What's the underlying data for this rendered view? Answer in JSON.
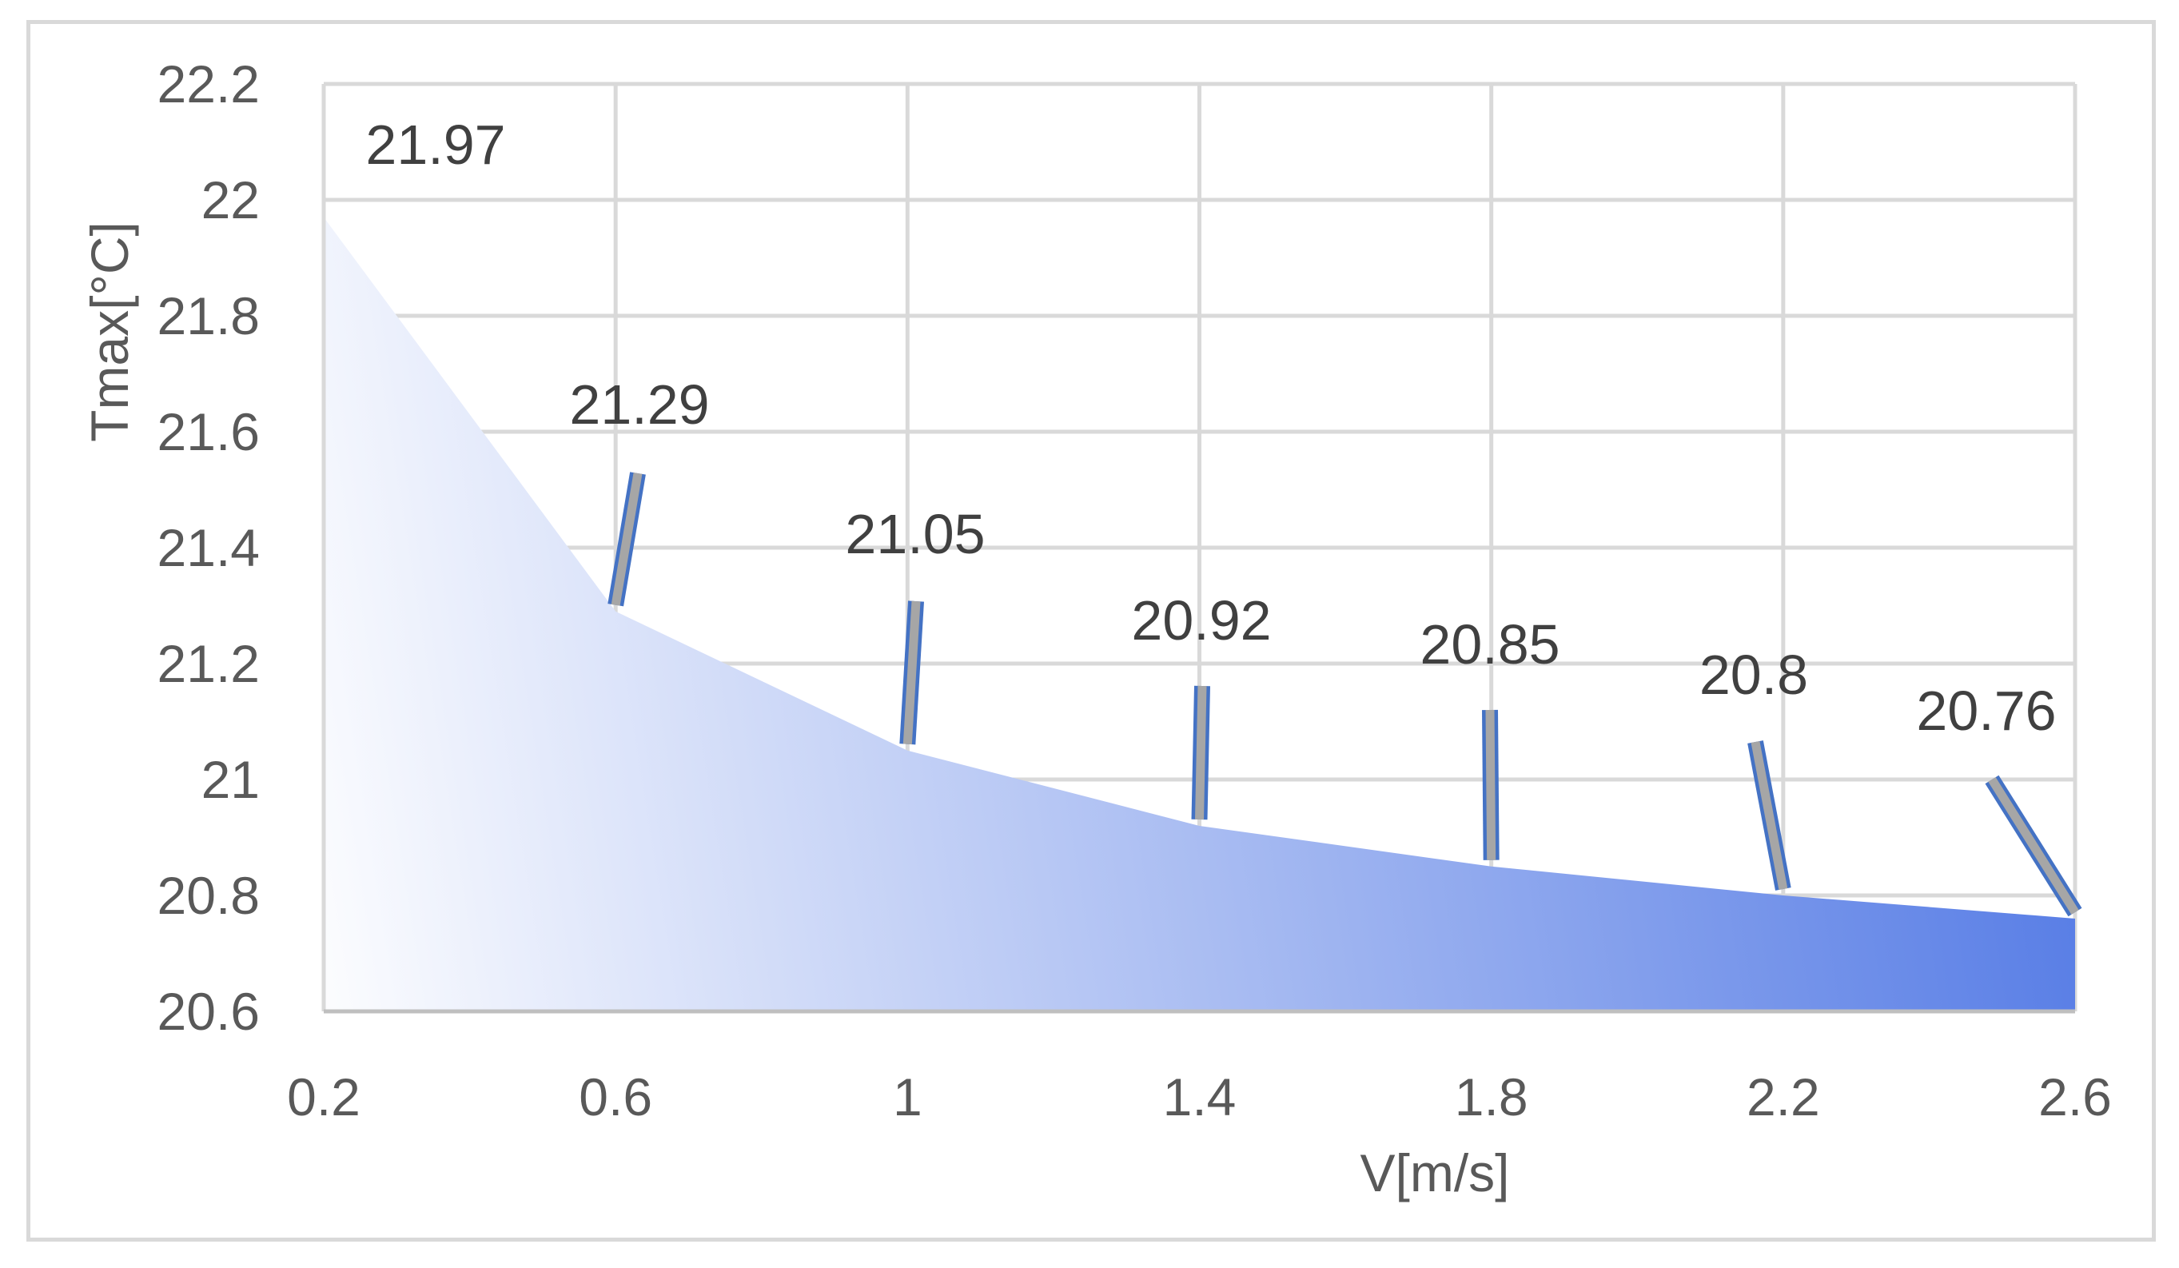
{
  "chart_data": {
    "type": "area",
    "x": [
      0.2,
      0.6,
      1,
      1.4,
      1.8,
      2.2,
      2.6
    ],
    "values": [
      21.97,
      21.29,
      21.05,
      20.92,
      20.85,
      20.8,
      20.76
    ],
    "data_labels": [
      "21.97",
      "21.29",
      "21.05",
      "20.92",
      "20.85",
      "20.8",
      "20.76"
    ],
    "x_ticks": [
      "0.2",
      "0.6",
      "1",
      "1.4",
      "1.8",
      "2.2",
      "2.6"
    ],
    "y_ticks": [
      "20.6",
      "20.8",
      "21",
      "21.2",
      "21.4",
      "21.6",
      "21.8",
      "22",
      "22.2"
    ],
    "xlim": [
      0.2,
      2.6
    ],
    "ylim": [
      20.6,
      22.2
    ],
    "xlabel": "V[m/s]",
    "ylabel": "Tmax[°C]",
    "grid": true,
    "legend": "none",
    "fill_colors": [
      "#5a7fe6",
      "#ffffff"
    ],
    "gridline_color": "#d9d9d9",
    "leader_line_color": "#a6a6a6",
    "leader_line_edge_color": "#4472c4"
  }
}
